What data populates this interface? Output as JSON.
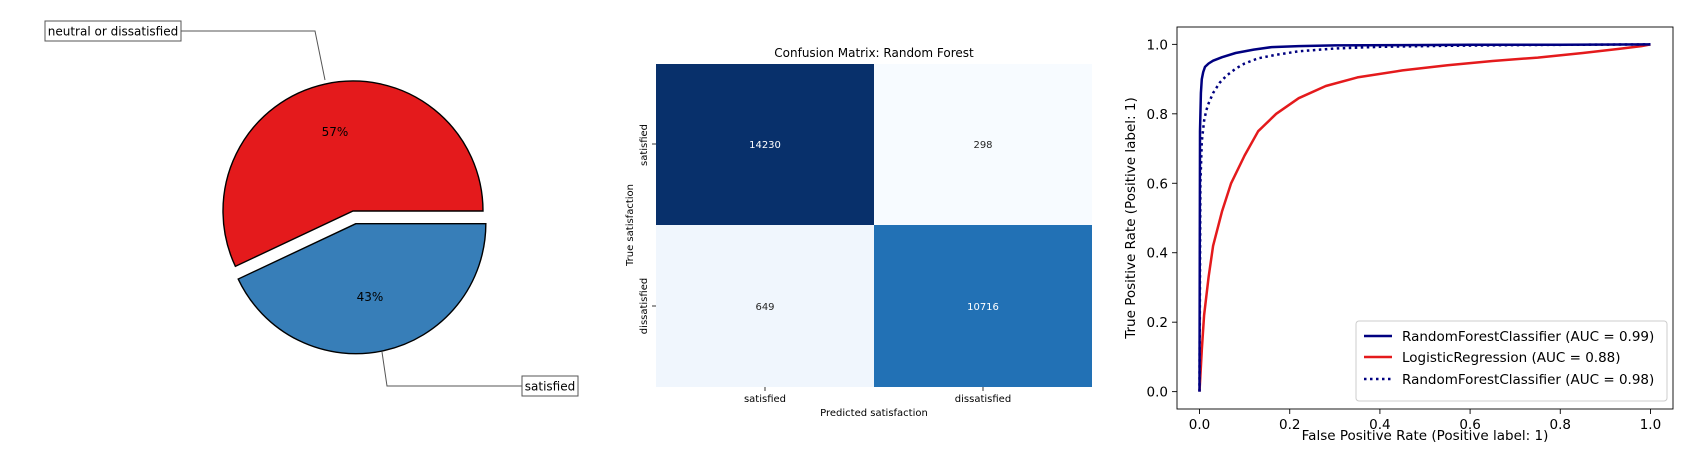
{
  "chart_data": [
    {
      "type": "pie",
      "title": "",
      "slices": [
        {
          "label": "neutral or dissatisfied",
          "value": 57,
          "pct_label": "57%",
          "color": "#e41a1c",
          "exploded": false
        },
        {
          "label": "satisfied",
          "value": 43,
          "pct_label": "43%",
          "color": "#377eb8",
          "exploded": true
        }
      ]
    },
    {
      "type": "heatmap",
      "title": "Confusion Matrix: Random Forest",
      "xlabel": "Predicted satisfaction",
      "ylabel": "True satisfaction",
      "x_categories": [
        "satisfied",
        "dissatisfied"
      ],
      "y_categories": [
        "satisfied",
        "dissatisfied"
      ],
      "values": [
        [
          14230,
          298
        ],
        [
          649,
          10716
        ]
      ],
      "cmap": "Blues",
      "colors": {
        "low": "#f7fbff",
        "mid": "#2171b5",
        "high": "#08306b"
      }
    },
    {
      "type": "line",
      "title": "",
      "xlabel": "False Positive Rate (Positive label: 1)",
      "ylabel": "True Positive Rate (Positive label: 1)",
      "xlim": [
        -0.05,
        1.05
      ],
      "ylim": [
        -0.05,
        1.05
      ],
      "xticks": [
        "0.0",
        "0.2",
        "0.4",
        "0.6",
        "0.8",
        "1.0"
      ],
      "yticks": [
        "0.0",
        "0.2",
        "0.4",
        "0.6",
        "0.8",
        "1.0"
      ],
      "legend_position": "bottom-right",
      "series": [
        {
          "name": "RandomForestClassifier (AUC = 0.99)",
          "color": "#000080",
          "style": "solid",
          "x": [
            0,
            0.001,
            0.003,
            0.005,
            0.008,
            0.012,
            0.02,
            0.03,
            0.05,
            0.08,
            0.12,
            0.16,
            0.22,
            0.3,
            0.45,
            0.6,
            0.8,
            1.0
          ],
          "y": [
            0,
            0.75,
            0.86,
            0.9,
            0.92,
            0.935,
            0.945,
            0.953,
            0.963,
            0.975,
            0.985,
            0.992,
            0.995,
            0.997,
            0.998,
            0.999,
            0.999,
            1.0
          ]
        },
        {
          "name": "LogisticRegression (AUC = 0.88)",
          "color": "#e41a1c",
          "style": "solid",
          "x": [
            0,
            0.005,
            0.01,
            0.02,
            0.03,
            0.05,
            0.07,
            0.1,
            0.13,
            0.17,
            0.22,
            0.28,
            0.35,
            0.45,
            0.55,
            0.65,
            0.75,
            0.85,
            0.93,
            0.98,
            1.0
          ],
          "y": [
            0,
            0.12,
            0.22,
            0.33,
            0.42,
            0.52,
            0.6,
            0.68,
            0.75,
            0.8,
            0.845,
            0.88,
            0.905,
            0.925,
            0.94,
            0.952,
            0.962,
            0.975,
            0.987,
            0.995,
            1.0
          ]
        },
        {
          "name": "RandomForestClassifier (AUC = 0.98)",
          "color": "#000080",
          "style": "dotted",
          "x": [
            0,
            0.002,
            0.005,
            0.01,
            0.015,
            0.02,
            0.03,
            0.045,
            0.06,
            0.08,
            0.1,
            0.13,
            0.17,
            0.22,
            0.3,
            0.4,
            0.55,
            0.7,
            0.85,
            1.0
          ],
          "y": [
            0,
            0.6,
            0.72,
            0.78,
            0.81,
            0.83,
            0.86,
            0.89,
            0.91,
            0.93,
            0.945,
            0.96,
            0.97,
            0.98,
            0.988,
            0.993,
            0.996,
            0.998,
            0.999,
            1.0
          ]
        }
      ]
    }
  ]
}
